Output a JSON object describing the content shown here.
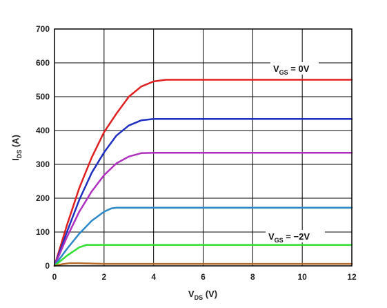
{
  "chart_data": {
    "type": "line",
    "xlabel": {
      "main": "V",
      "sub": "DS",
      "rest": " (V)"
    },
    "ylabel": {
      "main": "I",
      "sub": "DS",
      "rest": " (A)"
    },
    "xlim": [
      0,
      12
    ],
    "ylim": [
      0,
      700
    ],
    "xticks": [
      0,
      2,
      4,
      6,
      8,
      10,
      12
    ],
    "yticks": [
      0,
      100,
      200,
      300,
      400,
      500,
      600,
      700
    ],
    "grid": true,
    "series": [
      {
        "color": "#e02020",
        "points": [
          [
            0,
            0
          ],
          [
            0.5,
            120
          ],
          [
            1,
            230
          ],
          [
            1.5,
            320
          ],
          [
            2,
            395
          ],
          [
            2.5,
            450
          ],
          [
            3,
            500
          ],
          [
            3.5,
            530
          ],
          [
            4,
            545
          ],
          [
            4.5,
            550
          ],
          [
            5,
            550
          ],
          [
            12,
            550
          ]
        ]
      },
      {
        "color": "#1f2fc0",
        "points": [
          [
            0,
            0
          ],
          [
            0.5,
            100
          ],
          [
            1,
            195
          ],
          [
            1.5,
            275
          ],
          [
            2,
            335
          ],
          [
            2.5,
            385
          ],
          [
            3,
            415
          ],
          [
            3.5,
            430
          ],
          [
            4,
            434
          ],
          [
            5,
            434
          ],
          [
            12,
            434
          ]
        ]
      },
      {
        "color": "#b030c0",
        "points": [
          [
            0,
            0
          ],
          [
            0.5,
            85
          ],
          [
            1,
            160
          ],
          [
            1.5,
            220
          ],
          [
            2,
            268
          ],
          [
            2.5,
            303
          ],
          [
            3,
            323
          ],
          [
            3.5,
            333
          ],
          [
            4,
            334
          ],
          [
            5,
            334
          ],
          [
            12,
            334
          ]
        ]
      },
      {
        "color": "#2b88c8",
        "points": [
          [
            0,
            0
          ],
          [
            0.5,
            50
          ],
          [
            1,
            95
          ],
          [
            1.5,
            133
          ],
          [
            2,
            160
          ],
          [
            2.3,
            170
          ],
          [
            2.5,
            172
          ],
          [
            3,
            172
          ],
          [
            12,
            172
          ]
        ]
      },
      {
        "color": "#30e030",
        "points": [
          [
            0,
            0
          ],
          [
            0.5,
            30
          ],
          [
            1,
            55
          ],
          [
            1.3,
            62
          ],
          [
            1.5,
            62
          ],
          [
            2,
            62
          ],
          [
            12,
            62
          ]
        ]
      },
      {
        "color": "#b86a2a",
        "points": [
          [
            0,
            0
          ],
          [
            0.3,
            5
          ],
          [
            0.6,
            8
          ],
          [
            1,
            8
          ],
          [
            1.5,
            7
          ],
          [
            2,
            6
          ],
          [
            12,
            6
          ]
        ]
      }
    ],
    "annotations": [
      {
        "main": "V",
        "sub": "GS",
        "rest": " = 0V"
      },
      {
        "main": "V",
        "sub": "GS",
        "rest": " = −2V"
      }
    ]
  }
}
